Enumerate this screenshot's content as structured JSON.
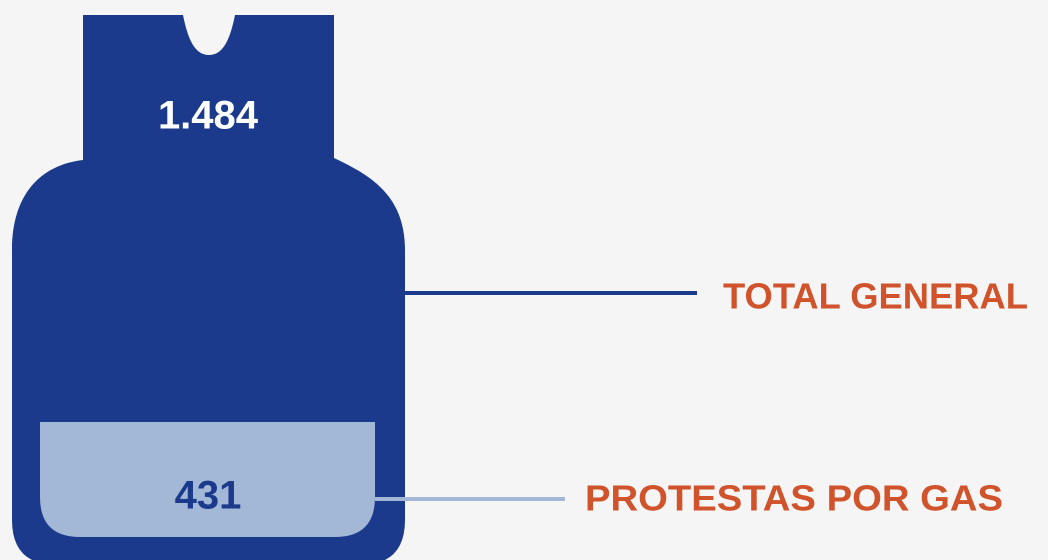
{
  "items": [
    {
      "label": "TOTAL GENERAL",
      "value": "1.484"
    },
    {
      "label": "PROTESTAS POR GAS",
      "value": "431"
    }
  ]
}
